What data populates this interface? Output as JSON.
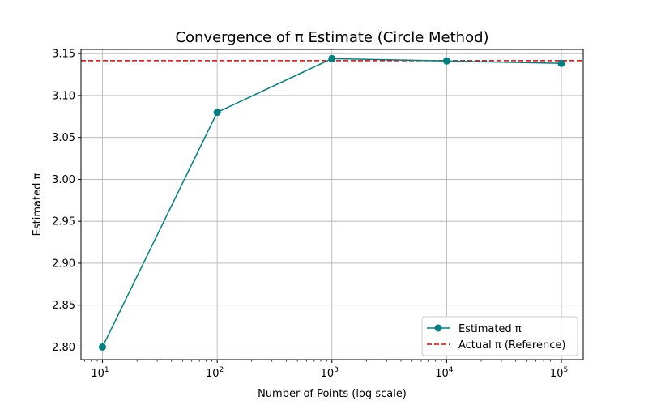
{
  "chart_data": {
    "type": "line",
    "title": "Convergence of π Estimate (Circle Method)",
    "xlabel": "Number of Points (log scale)",
    "ylabel": "Estimated π",
    "xscale": "log",
    "xlim": [
      6.5,
      155000
    ],
    "ylim": [
      2.785,
      3.155
    ],
    "x_ticks": [
      10,
      100,
      1000,
      10000,
      100000
    ],
    "x_tick_labels": [
      {
        "base": "10",
        "exp": "1"
      },
      {
        "base": "10",
        "exp": "2"
      },
      {
        "base": "10",
        "exp": "3"
      },
      {
        "base": "10",
        "exp": "4"
      },
      {
        "base": "10",
        "exp": "5"
      }
    ],
    "y_ticks": [
      2.8,
      2.85,
      2.9,
      2.95,
      3.0,
      3.05,
      3.1,
      3.15
    ],
    "y_tick_labels": [
      "2.80",
      "2.85",
      "2.90",
      "2.95",
      "3.00",
      "3.05",
      "3.10",
      "3.15"
    ],
    "grid": true,
    "legend_position": "bottom-right",
    "series": [
      {
        "name": "Estimated π",
        "color": "#008080",
        "marker": "circle",
        "x": [
          10,
          100,
          1000,
          10000,
          100000
        ],
        "y": [
          2.8,
          3.08,
          3.144,
          3.1412,
          3.1383
        ]
      }
    ],
    "reference_line": {
      "name": "Actual π (Reference)",
      "y": 3.14159,
      "color": "#dd0000",
      "style": "dashed"
    }
  }
}
